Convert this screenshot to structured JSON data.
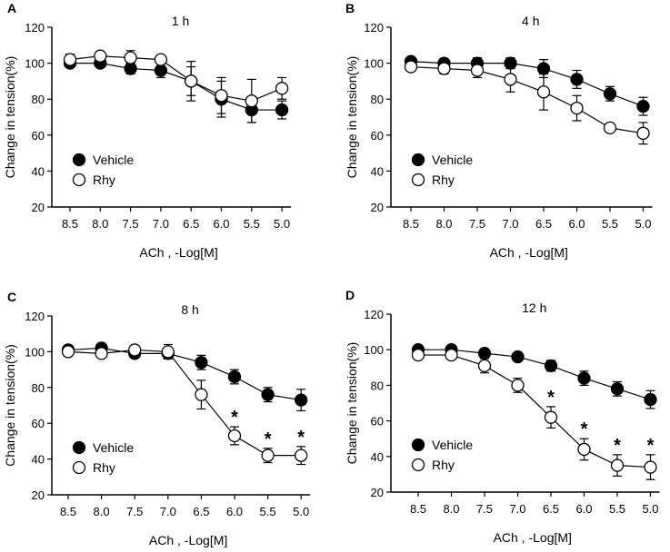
{
  "chart_data": [
    {
      "type": "line",
      "panel_letter": "A",
      "title": "1 h",
      "xlabel": "ACh , -Log[M]",
      "ylabel": "Change in tension(%)",
      "categories": [
        "8.5",
        "8.0",
        "7.5",
        "7.0",
        "6.5",
        "6.0",
        "5.5",
        "5.0"
      ],
      "yticks": [
        "20",
        "40",
        "60",
        "80",
        "100",
        "120"
      ],
      "ylim": [
        20,
        120
      ],
      "series": [
        {
          "name": "Vehicle",
          "marker": "filled",
          "values": [
            100,
            100,
            97,
            96,
            90,
            80,
            74,
            74
          ],
          "errors": [
            2,
            2,
            3,
            4,
            8,
            10,
            7,
            5
          ]
        },
        {
          "name": "Rhy",
          "marker": "open",
          "values": [
            102,
            104,
            103,
            102,
            90,
            82,
            79,
            86
          ],
          "errors": [
            3,
            2,
            4,
            2,
            11,
            10,
            12,
            6
          ]
        }
      ],
      "significance": []
    },
    {
      "type": "line",
      "panel_letter": "B",
      "title": "4 h",
      "xlabel": "ACh , -Log[M]",
      "ylabel": "Change in tension(%)",
      "categories": [
        "8.5",
        "8.0",
        "7.5",
        "7.0",
        "6.5",
        "6.0",
        "5.5",
        "5.0"
      ],
      "yticks": [
        "20",
        "40",
        "60",
        "80",
        "100",
        "120"
      ],
      "ylim": [
        20,
        120
      ],
      "series": [
        {
          "name": "Vehicle",
          "marker": "filled",
          "values": [
            101,
            100,
            100,
            100,
            97,
            91,
            83,
            76
          ],
          "errors": [
            2,
            2,
            3,
            3,
            5,
            5,
            4,
            5
          ]
        },
        {
          "name": "Rhy",
          "marker": "open",
          "values": [
            98,
            97,
            96,
            91,
            84,
            75,
            64,
            61
          ],
          "errors": [
            2,
            3,
            4,
            7,
            10,
            7,
            2,
            6
          ]
        }
      ],
      "significance": []
    },
    {
      "type": "line",
      "panel_letter": "C",
      "title": "8 h",
      "xlabel": "ACh , -Log[M]",
      "ylabel": "Change in tension(%)",
      "categories": [
        "8.5",
        "8.0",
        "7.5",
        "7.0",
        "6.5",
        "6.0",
        "5.5",
        "5.0"
      ],
      "yticks": [
        "20",
        "40",
        "60",
        "80",
        "100",
        "120"
      ],
      "ylim": [
        20,
        120
      ],
      "series": [
        {
          "name": "Vehicle",
          "marker": "filled",
          "values": [
            101,
            102,
            99,
            99,
            94,
            86,
            76,
            73
          ],
          "errors": [
            2,
            2,
            2,
            3,
            4,
            4,
            4,
            6
          ]
        },
        {
          "name": "Rhy",
          "marker": "open",
          "values": [
            100,
            99,
            101,
            100,
            76,
            53,
            42,
            42
          ],
          "errors": [
            2,
            2,
            2,
            4,
            8,
            5,
            4,
            5
          ]
        }
      ],
      "significance": [
        {
          "category": "6.0",
          "label": "*"
        },
        {
          "category": "5.5",
          "label": "*"
        },
        {
          "category": "5.0",
          "label": "*"
        }
      ]
    },
    {
      "type": "line",
      "panel_letter": "D",
      "title": "12 h",
      "xlabel": "ACh , -Log[M]",
      "ylabel": "Change in tension(%)",
      "categories": [
        "8.5",
        "8.0",
        "7.5",
        "7.0",
        "6.5",
        "6.0",
        "5.5",
        "5.0"
      ],
      "yticks": [
        "20",
        "40",
        "60",
        "80",
        "100",
        "120"
      ],
      "ylim": [
        20,
        120
      ],
      "series": [
        {
          "name": "Vehicle",
          "marker": "filled",
          "values": [
            100,
            100,
            98,
            96,
            91,
            84,
            78,
            72
          ],
          "errors": [
            2,
            2,
            2,
            2,
            3,
            4,
            4,
            5
          ]
        },
        {
          "name": "Rhy",
          "marker": "open",
          "values": [
            97,
            97,
            91,
            80,
            62,
            44,
            35,
            34
          ],
          "errors": [
            2,
            2,
            4,
            4,
            6,
            6,
            6,
            7
          ]
        }
      ],
      "significance": [
        {
          "category": "6.5",
          "label": "*"
        },
        {
          "category": "6.0",
          "label": "*"
        },
        {
          "category": "5.5",
          "label": "*"
        },
        {
          "category": "5.0",
          "label": "*"
        }
      ]
    }
  ]
}
